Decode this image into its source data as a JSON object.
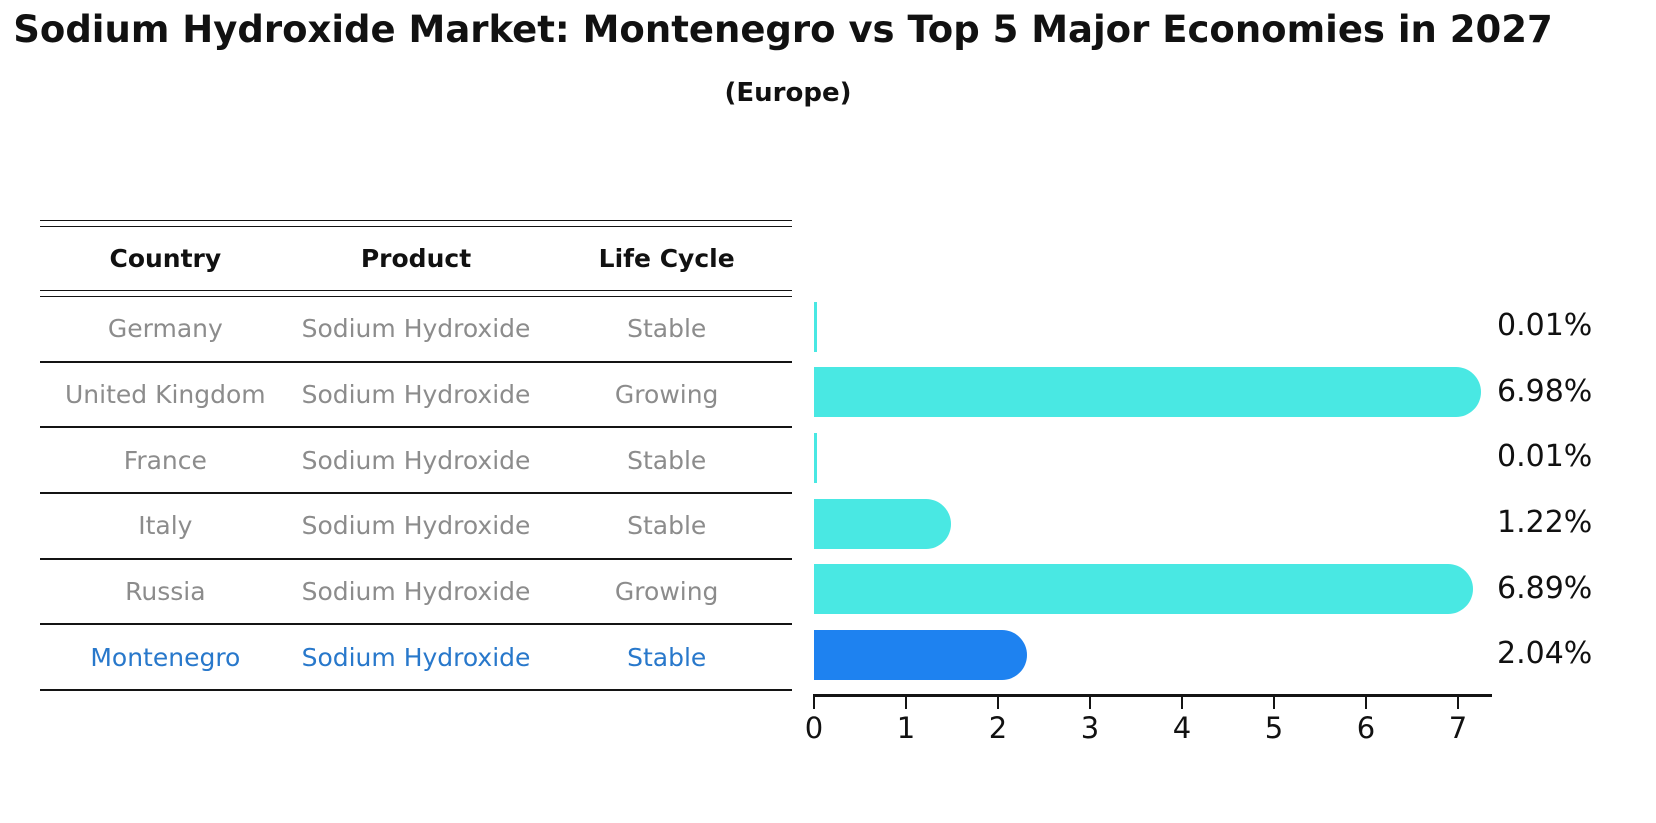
{
  "title": "Sodium Hydroxide Market: Montenegro vs Top 5 Major Economies in 2027",
  "subtitle": "(Europe)",
  "table": {
    "columns": [
      "Country",
      "Product",
      "Life Cycle"
    ],
    "rows": [
      {
        "country": "Germany",
        "product": "Sodium Hydroxide",
        "life_cycle": "Stable",
        "highlight": false
      },
      {
        "country": "United Kingdom",
        "product": "Sodium Hydroxide",
        "life_cycle": "Growing",
        "highlight": false
      },
      {
        "country": "France",
        "product": "Sodium Hydroxide",
        "life_cycle": "Stable",
        "highlight": false
      },
      {
        "country": "Italy",
        "product": "Sodium Hydroxide",
        "life_cycle": "Stable",
        "highlight": false
      },
      {
        "country": "Russia",
        "product": "Sodium Hydroxide",
        "life_cycle": "Growing",
        "highlight": false
      },
      {
        "country": "Montenegro",
        "product": "Sodium Hydroxide",
        "life_cycle": "Stable",
        "highlight": true
      }
    ]
  },
  "chart_data": {
    "type": "bar",
    "orientation": "horizontal",
    "title": "Sodium Hydroxide Market: Montenegro vs Top 5 Major Economies in 2027",
    "subtitle": "(Europe)",
    "categories": [
      "Germany",
      "United Kingdom",
      "France",
      "Italy",
      "Russia",
      "Montenegro"
    ],
    "values": [
      0.01,
      6.98,
      0.01,
      1.22,
      6.89,
      2.04
    ],
    "value_labels": [
      "0.01%",
      "6.98%",
      "0.01%",
      "1.22%",
      "6.89%",
      "2.04%"
    ],
    "x_ticks": [
      "0",
      "1",
      "2",
      "3",
      "4",
      "5",
      "6",
      "7"
    ],
    "xlim": [
      0,
      7.35
    ],
    "xlabel": "",
    "ylabel": "",
    "grid": false,
    "legend": "none",
    "bar_color": "#49E8E3",
    "highlight_index": 5,
    "highlight_color": "#1E82F0",
    "highlight_edge_style": "dotted",
    "highlight_text_color": "#2878CB",
    "units": "percent"
  },
  "colors": {
    "background": "#ffffff",
    "table_text_gray": "#8c8c8c",
    "line_black": "#141414"
  }
}
